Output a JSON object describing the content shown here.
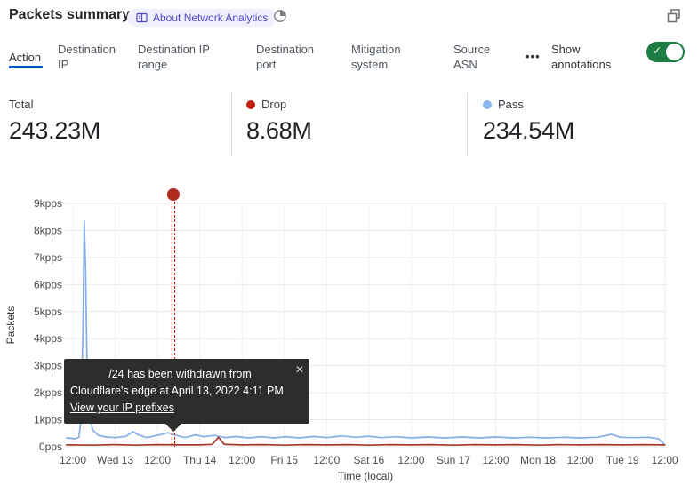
{
  "header": {
    "title": "Packets summary",
    "about_label": "About Network Analytics"
  },
  "tabs": {
    "items": [
      {
        "label": "Action",
        "active": true
      },
      {
        "label": "Destination IP",
        "active": false
      },
      {
        "label": "Destination IP range",
        "active": false
      },
      {
        "label": "Destination port",
        "active": false
      },
      {
        "label": "Mitigation system",
        "active": false
      },
      {
        "label": "Source ASN",
        "active": false
      }
    ],
    "more_label": "•••",
    "annotations_label": "Show annotations",
    "toggle_on": true,
    "toggle_color": "#1b7d42",
    "toggle_check": "✓"
  },
  "stats": {
    "items": [
      {
        "label": "Total",
        "value": "243.23M",
        "dot_color": null
      },
      {
        "label": "Drop",
        "value": "8.68M",
        "dot_color": "#c21e10"
      },
      {
        "label": "Pass",
        "value": "234.54M",
        "dot_color": "#8ab7e9"
      }
    ]
  },
  "tooltip": {
    "line1": "/24 has been withdrawn from",
    "line2": "Cloudflare's edge at April 13, 2022 4:11 PM",
    "link_label": "View your IP prefixes",
    "close_label": "✕"
  },
  "chart_data": {
    "type": "line",
    "xlabel": "Time (local)",
    "ylabel": "Packets",
    "x_ticks": [
      "12:00",
      "Wed 13",
      "12:00",
      "Thu 14",
      "12:00",
      "Fri 15",
      "12:00",
      "Sat 16",
      "12:00",
      "Sun 17",
      "12:00",
      "Mon 18",
      "12:00",
      "Tue 19",
      "12:00"
    ],
    "y_ticks": [
      "0pps",
      "1kpps",
      "2kpps",
      "3kpps",
      "4kpps",
      "5kpps",
      "6kpps",
      "7kpps",
      "8kpps",
      "9kpps"
    ],
    "ylim": [
      0,
      9
    ],
    "x_unit": "tick-index (each tick = 12 hours)",
    "grid": true,
    "series": [
      {
        "name": "Pass",
        "color": "#85ade6",
        "points": [
          [
            -0.15,
            0.33
          ],
          [
            0.05,
            0.3
          ],
          [
            0.14,
            0.35
          ],
          [
            0.19,
            0.9
          ],
          [
            0.24,
            4.5
          ],
          [
            0.27,
            8.35
          ],
          [
            0.3,
            6.5
          ],
          [
            0.34,
            2.4
          ],
          [
            0.4,
            1.1
          ],
          [
            0.47,
            0.62
          ],
          [
            0.6,
            0.42
          ],
          [
            0.8,
            0.36
          ],
          [
            1.0,
            0.34
          ],
          [
            1.25,
            0.38
          ],
          [
            1.42,
            0.56
          ],
          [
            1.55,
            0.44
          ],
          [
            1.75,
            0.34
          ],
          [
            2.05,
            0.44
          ],
          [
            2.25,
            0.52
          ],
          [
            2.45,
            0.42
          ],
          [
            2.65,
            0.34
          ],
          [
            2.9,
            0.44
          ],
          [
            3.1,
            0.37
          ],
          [
            3.35,
            0.42
          ],
          [
            3.6,
            0.34
          ],
          [
            3.85,
            0.38
          ],
          [
            4.15,
            0.33
          ],
          [
            4.45,
            0.37
          ],
          [
            4.75,
            0.33
          ],
          [
            5.05,
            0.37
          ],
          [
            5.35,
            0.33
          ],
          [
            5.7,
            0.38
          ],
          [
            6.0,
            0.34
          ],
          [
            6.35,
            0.4
          ],
          [
            6.7,
            0.35
          ],
          [
            7.0,
            0.39
          ],
          [
            7.3,
            0.34
          ],
          [
            7.65,
            0.37
          ],
          [
            8.0,
            0.33
          ],
          [
            8.4,
            0.36
          ],
          [
            8.8,
            0.33
          ],
          [
            9.2,
            0.36
          ],
          [
            9.6,
            0.33
          ],
          [
            10.0,
            0.36
          ],
          [
            10.4,
            0.33
          ],
          [
            10.8,
            0.35
          ],
          [
            11.2,
            0.33
          ],
          [
            11.6,
            0.35
          ],
          [
            12.0,
            0.33
          ],
          [
            12.4,
            0.35
          ],
          [
            12.74,
            0.46
          ],
          [
            12.95,
            0.35
          ],
          [
            13.3,
            0.34
          ],
          [
            13.6,
            0.35
          ],
          [
            13.85,
            0.3
          ],
          [
            13.98,
            0.1
          ]
        ]
      },
      {
        "name": "Drop",
        "color": "#a6392c",
        "points": [
          [
            -0.15,
            0.07
          ],
          [
            0.5,
            0.06
          ],
          [
            1.0,
            0.08
          ],
          [
            1.5,
            0.06
          ],
          [
            2.0,
            0.08
          ],
          [
            2.5,
            0.07
          ],
          [
            3.0,
            0.07
          ],
          [
            3.3,
            0.09
          ],
          [
            3.44,
            0.35
          ],
          [
            3.58,
            0.09
          ],
          [
            4.0,
            0.07
          ],
          [
            4.5,
            0.08
          ],
          [
            5.0,
            0.06
          ],
          [
            5.5,
            0.08
          ],
          [
            6.0,
            0.07
          ],
          [
            6.5,
            0.08
          ],
          [
            7.0,
            0.06
          ],
          [
            7.5,
            0.08
          ],
          [
            8.0,
            0.07
          ],
          [
            8.5,
            0.08
          ],
          [
            9.0,
            0.06
          ],
          [
            9.5,
            0.08
          ],
          [
            10.0,
            0.07
          ],
          [
            10.5,
            0.08
          ],
          [
            11.0,
            0.06
          ],
          [
            11.5,
            0.08
          ],
          [
            12.0,
            0.07
          ],
          [
            12.5,
            0.08
          ],
          [
            13.0,
            0.07
          ],
          [
            13.5,
            0.08
          ],
          [
            14.0,
            0.07
          ]
        ]
      }
    ],
    "annotation": {
      "t": 2.375,
      "color": "#b02b1c",
      "marker": "dot-with-dashed-vertical-line"
    },
    "summary": {
      "total": "243.23M",
      "drop": "8.68M",
      "pass": "234.54M"
    }
  }
}
